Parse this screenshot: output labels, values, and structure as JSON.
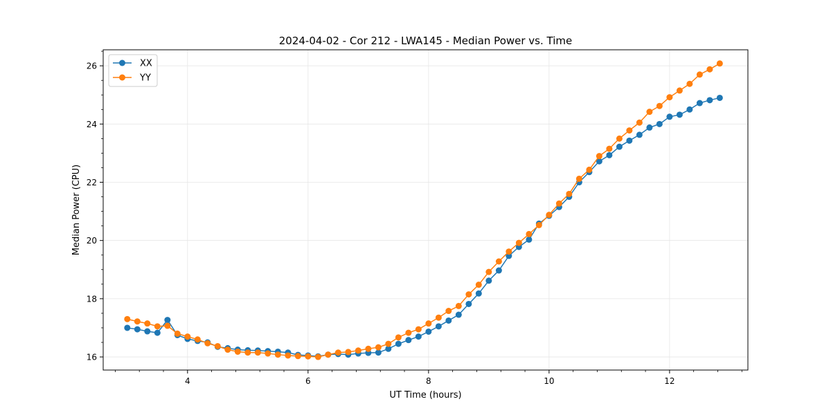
{
  "chart_data": {
    "type": "line",
    "title": "2024-04-02 - Cor 212 - LWA145 - Median Power vs. Time",
    "xlabel": "UT Time (hours)",
    "ylabel": "Median Power (CPU)",
    "xlim": [
      2.6,
      13.3
    ],
    "ylim": [
      15.55,
      26.55
    ],
    "xticks": [
      4,
      6,
      8,
      10,
      12
    ],
    "yticks": [
      16,
      18,
      20,
      22,
      24,
      26
    ],
    "grid": true,
    "legend_position": "top-left",
    "x": [
      3.0,
      3.167,
      3.333,
      3.5,
      3.667,
      3.833,
      4.0,
      4.167,
      4.333,
      4.5,
      4.667,
      4.833,
      5.0,
      5.167,
      5.333,
      5.5,
      5.667,
      5.833,
      6.0,
      6.167,
      6.333,
      6.5,
      6.667,
      6.833,
      7.0,
      7.167,
      7.333,
      7.5,
      7.667,
      7.833,
      8.0,
      8.167,
      8.333,
      8.5,
      8.667,
      8.833,
      9.0,
      9.167,
      9.333,
      9.5,
      9.667,
      9.833,
      10.0,
      10.167,
      10.333,
      10.5,
      10.667,
      10.833,
      11.0,
      11.167,
      11.333,
      11.5,
      11.667,
      11.833,
      12.0,
      12.167,
      12.333,
      12.5,
      12.667,
      12.833
    ],
    "series": [
      {
        "name": "XX",
        "color": "#1f77b4",
        "values": [
          17.0,
          16.95,
          16.88,
          16.83,
          17.27,
          16.75,
          16.62,
          16.55,
          16.5,
          16.35,
          16.3,
          16.25,
          16.23,
          16.22,
          16.2,
          16.18,
          16.15,
          16.07,
          16.05,
          16.02,
          16.08,
          16.1,
          16.08,
          16.12,
          16.14,
          16.15,
          16.28,
          16.45,
          16.58,
          16.7,
          16.87,
          17.05,
          17.25,
          17.45,
          17.82,
          18.18,
          18.62,
          18.97,
          19.47,
          19.78,
          20.03,
          20.58,
          20.85,
          21.15,
          21.5,
          22.0,
          22.35,
          22.72,
          22.93,
          23.22,
          23.43,
          23.63,
          23.88,
          24.0,
          24.25,
          24.32,
          24.5,
          24.72,
          24.82,
          24.9
        ]
      },
      {
        "name": "YY",
        "color": "#ff7f0e",
        "values": [
          17.3,
          17.22,
          17.15,
          17.05,
          17.07,
          16.8,
          16.7,
          16.6,
          16.47,
          16.37,
          16.25,
          16.18,
          16.15,
          16.15,
          16.12,
          16.08,
          16.05,
          16.03,
          16.02,
          16.0,
          16.08,
          16.15,
          16.17,
          16.22,
          16.28,
          16.33,
          16.45,
          16.67,
          16.83,
          16.95,
          17.15,
          17.35,
          17.58,
          17.75,
          18.15,
          18.48,
          18.92,
          19.28,
          19.62,
          19.92,
          20.22,
          20.53,
          20.88,
          21.27,
          21.6,
          22.12,
          22.43,
          22.9,
          23.15,
          23.5,
          23.78,
          24.05,
          24.42,
          24.62,
          24.92,
          25.15,
          25.38,
          25.7,
          25.88,
          26.08
        ]
      }
    ]
  }
}
